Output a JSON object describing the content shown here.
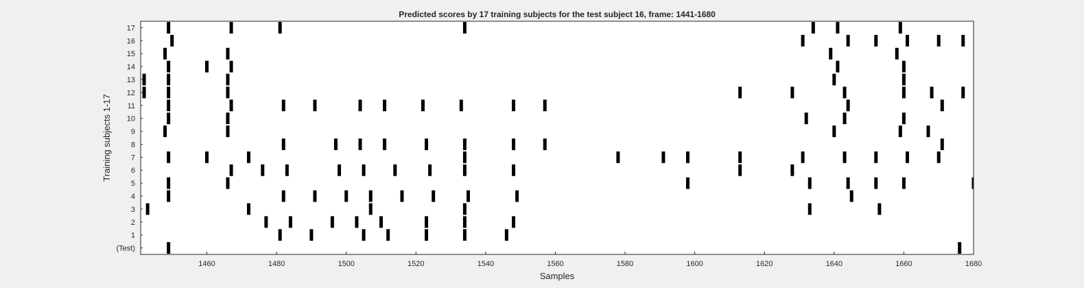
{
  "chart_data": {
    "type": "raster",
    "title": "Predicted scores by 17 training subjects for the test subject 16, frame: 1441-1680",
    "xlabel": "Samples",
    "ylabel": "Training subjects 1-17",
    "xlim": [
      1441,
      1680
    ],
    "xticks": [
      1460,
      1480,
      1500,
      1520,
      1540,
      1560,
      1580,
      1600,
      1620,
      1640,
      1660,
      1680
    ],
    "ytick_labels": [
      "(Test)",
      "1",
      "2",
      "3",
      "4",
      "5",
      "6",
      "7",
      "8",
      "9",
      "10",
      "11",
      "12",
      "13",
      "14",
      "15",
      "16",
      "17"
    ],
    "grid": false,
    "rows": [
      {
        "label": "(Test)",
        "events": [
          1449,
          1676
        ]
      },
      {
        "label": "1",
        "events": [
          1481,
          1490,
          1505,
          1512,
          1523,
          1534,
          1546
        ]
      },
      {
        "label": "2",
        "events": [
          1477,
          1484,
          1496,
          1503,
          1510,
          1523,
          1534,
          1548
        ]
      },
      {
        "label": "3",
        "events": [
          1443,
          1472,
          1507,
          1534,
          1633,
          1653
        ]
      },
      {
        "label": "4",
        "events": [
          1449,
          1482,
          1491,
          1500,
          1507,
          1516,
          1525,
          1535,
          1549,
          1645
        ]
      },
      {
        "label": "5",
        "events": [
          1449,
          1466,
          1598,
          1633,
          1644,
          1652,
          1660,
          1680
        ]
      },
      {
        "label": "6",
        "events": [
          1467,
          1476,
          1483,
          1498,
          1505,
          1514,
          1524,
          1534,
          1548,
          1613,
          1628
        ]
      },
      {
        "label": "7",
        "events": [
          1449,
          1460,
          1472,
          1534,
          1578,
          1591,
          1598,
          1613,
          1631,
          1643,
          1652,
          1661,
          1670
        ]
      },
      {
        "label": "8",
        "events": [
          1482,
          1497,
          1504,
          1511,
          1523,
          1534,
          1548,
          1557,
          1671
        ]
      },
      {
        "label": "9",
        "events": [
          1448,
          1466,
          1640,
          1659,
          1667
        ]
      },
      {
        "label": "10",
        "events": [
          1449,
          1466,
          1632,
          1643,
          1660
        ]
      },
      {
        "label": "11",
        "events": [
          1449,
          1467,
          1482,
          1491,
          1504,
          1511,
          1522,
          1533,
          1548,
          1557,
          1644,
          1671
        ]
      },
      {
        "label": "12",
        "events": [
          1442,
          1449,
          1466,
          1613,
          1628,
          1643,
          1660,
          1668,
          1677
        ]
      },
      {
        "label": "13",
        "events": [
          1442,
          1449,
          1466,
          1640,
          1660
        ]
      },
      {
        "label": "14",
        "events": [
          1449,
          1460,
          1467,
          1641,
          1660
        ]
      },
      {
        "label": "15",
        "events": [
          1448,
          1466,
          1639,
          1658
        ]
      },
      {
        "label": "16",
        "events": [
          1450,
          1631,
          1644,
          1652,
          1661,
          1670,
          1677
        ]
      },
      {
        "label": "17",
        "events": [
          1449,
          1467,
          1481,
          1534,
          1634,
          1641,
          1659
        ]
      }
    ],
    "colors": {
      "figure_bg": "#f0f0f0",
      "axes_bg": "#ffffff",
      "mark": "#000000",
      "axis_line": "#262626",
      "text": "#262626"
    }
  }
}
